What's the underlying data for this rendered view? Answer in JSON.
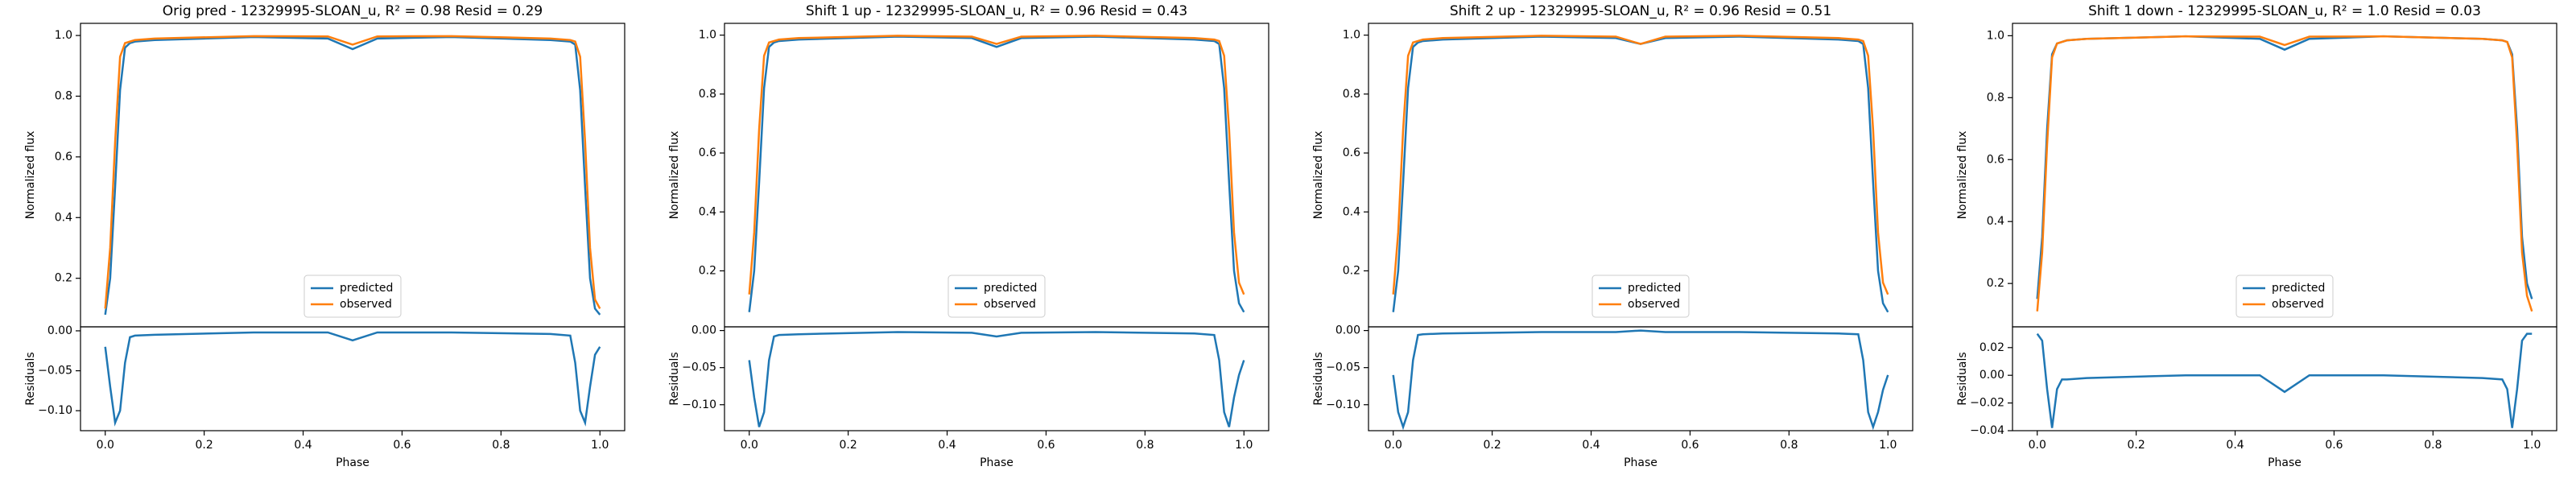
{
  "chart_data": [
    {
      "type": "line",
      "title": "Orig pred - 12329995-SLOAN_u, R² = 0.98 Resid = 0.29",
      "ylabel": "Normalized flux",
      "x": [
        0,
        0.01,
        0.02,
        0.03,
        0.04,
        0.05,
        0.06,
        0.1,
        0.3,
        0.45,
        0.5,
        0.55,
        0.7,
        0.9,
        0.94,
        0.95,
        0.96,
        0.97,
        0.98,
        0.99,
        1
      ],
      "series": [
        {
          "name": "predicted",
          "color": "#1f77b4",
          "values": [
            0.08,
            0.2,
            0.5,
            0.82,
            0.96,
            0.975,
            0.98,
            0.985,
            0.995,
            0.99,
            0.955,
            0.99,
            0.995,
            0.985,
            0.98,
            0.97,
            0.82,
            0.5,
            0.2,
            0.1,
            0.08
          ]
        },
        {
          "name": "observed",
          "color": "#ff7f0e",
          "values": [
            0.1,
            0.3,
            0.65,
            0.93,
            0.975,
            0.98,
            0.985,
            0.99,
            0.998,
            0.997,
            0.97,
            0.997,
            0.998,
            0.99,
            0.985,
            0.98,
            0.93,
            0.65,
            0.3,
            0.13,
            0.1
          ]
        }
      ],
      "xlim": [
        -0.05,
        1.05
      ],
      "ylim": [
        0.04,
        1.04
      ],
      "yticks": [
        0.2,
        0.4,
        0.6,
        0.8,
        {
          "value": 1,
          "label": "1.0"
        }
      ],
      "legend": "lower center"
    },
    {
      "type": "line",
      "xlabel": "Phase",
      "ylabel": "Residuals",
      "x": [
        0,
        0.01,
        0.02,
        0.03,
        0.04,
        0.05,
        0.06,
        0.1,
        0.3,
        0.45,
        0.5,
        0.55,
        0.7,
        0.9,
        0.94,
        0.95,
        0.96,
        0.97,
        0.98,
        0.99,
        1
      ],
      "series": [
        {
          "color": "#1f77b4",
          "values": [
            -0.02,
            -0.07,
            -0.115,
            -0.1,
            -0.04,
            -0.008,
            -0.006,
            -0.005,
            -0.002,
            -0.002,
            -0.012,
            -0.002,
            -0.002,
            -0.004,
            -0.006,
            -0.04,
            -0.1,
            -0.115,
            -0.07,
            -0.03,
            -0.02
          ]
        }
      ],
      "xlim": [
        -0.05,
        1.05
      ],
      "xticks": [
        {
          "value": 0,
          "label": "0.0"
        },
        0.2,
        0.4,
        0.6,
        0.8,
        {
          "value": 1,
          "label": "1.0"
        }
      ],
      "ylim": [
        -0.125,
        0.005
      ],
      "yticks": [
        {
          "value": 0,
          "label": "0.00"
        },
        {
          "value": -0.05,
          "label": "−0.05"
        },
        {
          "value": -0.1,
          "label": "−0.10"
        }
      ]
    },
    {
      "type": "line",
      "title": "Shift 1 up - 12329995-SLOAN_u, R² = 0.96 Resid = 0.43",
      "ylabel": "Normalized flux",
      "x": [
        0,
        0.01,
        0.02,
        0.03,
        0.04,
        0.05,
        0.06,
        0.1,
        0.3,
        0.45,
        0.5,
        0.55,
        0.7,
        0.9,
        0.94,
        0.95,
        0.96,
        0.97,
        0.98,
        0.99,
        1
      ],
      "series": [
        {
          "name": "predicted",
          "color": "#1f77b4",
          "values": [
            0.06,
            0.2,
            0.5,
            0.82,
            0.96,
            0.975,
            0.98,
            0.985,
            0.995,
            0.99,
            0.96,
            0.99,
            0.995,
            0.985,
            0.98,
            0.97,
            0.82,
            0.5,
            0.2,
            0.09,
            0.06
          ]
        },
        {
          "name": "observed",
          "color": "#ff7f0e",
          "values": [
            0.12,
            0.33,
            0.68,
            0.93,
            0.975,
            0.98,
            0.985,
            0.99,
            0.998,
            0.995,
            0.97,
            0.995,
            0.998,
            0.99,
            0.985,
            0.98,
            0.93,
            0.68,
            0.33,
            0.16,
            0.12
          ]
        }
      ],
      "xlim": [
        -0.05,
        1.05
      ],
      "ylim": [
        0.01,
        1.04
      ],
      "yticks": [
        0.2,
        0.4,
        0.6,
        0.8,
        {
          "value": 1,
          "label": "1.0"
        }
      ],
      "legend": "lower center"
    },
    {
      "type": "line",
      "xlabel": "Phase",
      "ylabel": "Residuals",
      "x": [
        0,
        0.01,
        0.02,
        0.03,
        0.04,
        0.05,
        0.06,
        0.1,
        0.3,
        0.45,
        0.5,
        0.55,
        0.7,
        0.9,
        0.94,
        0.95,
        0.96,
        0.97,
        0.98,
        0.99,
        1
      ],
      "series": [
        {
          "color": "#1f77b4",
          "values": [
            -0.04,
            -0.09,
            -0.13,
            -0.11,
            -0.04,
            -0.008,
            -0.006,
            -0.005,
            -0.002,
            -0.003,
            -0.008,
            -0.003,
            -0.002,
            -0.004,
            -0.006,
            -0.04,
            -0.11,
            -0.13,
            -0.09,
            -0.06,
            -0.04
          ]
        }
      ],
      "xlim": [
        -0.05,
        1.05
      ],
      "xticks": [
        {
          "value": 0,
          "label": "0.0"
        },
        0.2,
        0.4,
        0.6,
        0.8,
        {
          "value": 1,
          "label": "1.0"
        }
      ],
      "ylim": [
        -0.135,
        0.005
      ],
      "yticks": [
        {
          "value": 0,
          "label": "0.00"
        },
        {
          "value": -0.05,
          "label": "−0.05"
        },
        {
          "value": -0.1,
          "label": "−0.10"
        }
      ]
    },
    {
      "type": "line",
      "title": "Shift 2 up - 12329995-SLOAN_u, R² = 0.96 Resid = 0.51",
      "ylabel": "Normalized flux",
      "x": [
        0,
        0.01,
        0.02,
        0.03,
        0.04,
        0.05,
        0.06,
        0.1,
        0.3,
        0.45,
        0.5,
        0.55,
        0.7,
        0.9,
        0.94,
        0.95,
        0.96,
        0.97,
        0.98,
        0.99,
        1
      ],
      "series": [
        {
          "name": "predicted",
          "color": "#1f77b4",
          "values": [
            0.06,
            0.2,
            0.5,
            0.82,
            0.96,
            0.975,
            0.98,
            0.985,
            0.995,
            0.99,
            0.97,
            0.99,
            0.995,
            0.985,
            0.98,
            0.97,
            0.82,
            0.5,
            0.2,
            0.09,
            0.06
          ]
        },
        {
          "name": "observed",
          "color": "#ff7f0e",
          "values": [
            0.12,
            0.33,
            0.68,
            0.93,
            0.975,
            0.98,
            0.985,
            0.99,
            0.998,
            0.995,
            0.97,
            0.995,
            0.998,
            0.99,
            0.985,
            0.98,
            0.93,
            0.68,
            0.33,
            0.16,
            0.12
          ]
        }
      ],
      "xlim": [
        -0.05,
        1.05
      ],
      "ylim": [
        0.01,
        1.04
      ],
      "yticks": [
        0.2,
        0.4,
        0.6,
        0.8,
        {
          "value": 1,
          "label": "1.0"
        }
      ],
      "legend": "lower center"
    },
    {
      "type": "line",
      "xlabel": "Phase",
      "ylabel": "Residuals",
      "x": [
        0,
        0.01,
        0.02,
        0.03,
        0.04,
        0.05,
        0.06,
        0.1,
        0.3,
        0.45,
        0.5,
        0.55,
        0.7,
        0.9,
        0.94,
        0.95,
        0.96,
        0.97,
        0.98,
        0.99,
        1
      ],
      "series": [
        {
          "color": "#1f77b4",
          "values": [
            -0.06,
            -0.11,
            -0.13,
            -0.11,
            -0.04,
            -0.006,
            -0.005,
            -0.004,
            -0.002,
            -0.002,
            0,
            -0.002,
            -0.002,
            -0.004,
            -0.005,
            -0.04,
            -0.11,
            -0.13,
            -0.11,
            -0.08,
            -0.06
          ]
        }
      ],
      "xlim": [
        -0.05,
        1.05
      ],
      "xticks": [
        {
          "value": 0,
          "label": "0.0"
        },
        0.2,
        0.4,
        0.6,
        0.8,
        {
          "value": 1,
          "label": "1.0"
        }
      ],
      "ylim": [
        -0.135,
        0.005
      ],
      "yticks": [
        {
          "value": 0,
          "label": "0.00"
        },
        {
          "value": -0.05,
          "label": "−0.05"
        },
        {
          "value": -0.1,
          "label": "−0.10"
        }
      ]
    },
    {
      "type": "line",
      "title": "Shift 1 down - 12329995-SLOAN_u, R² = 1.0 Resid = 0.03",
      "ylabel": "Normalized flux",
      "x": [
        0,
        0.01,
        0.02,
        0.03,
        0.04,
        0.05,
        0.06,
        0.1,
        0.3,
        0.45,
        0.5,
        0.55,
        0.7,
        0.9,
        0.94,
        0.95,
        0.96,
        0.97,
        0.98,
        0.99,
        1
      ],
      "series": [
        {
          "name": "predicted",
          "color": "#1f77b4",
          "values": [
            0.15,
            0.35,
            0.7,
            0.94,
            0.975,
            0.98,
            0.985,
            0.99,
            0.998,
            0.99,
            0.955,
            0.99,
            0.998,
            0.99,
            0.985,
            0.98,
            0.94,
            0.7,
            0.35,
            0.2,
            0.15
          ]
        },
        {
          "name": "observed",
          "color": "#ff7f0e",
          "values": [
            0.11,
            0.3,
            0.65,
            0.93,
            0.975,
            0.98,
            0.985,
            0.99,
            0.998,
            0.997,
            0.97,
            0.997,
            0.998,
            0.99,
            0.985,
            0.98,
            0.93,
            0.65,
            0.3,
            0.16,
            0.11
          ]
        }
      ],
      "xlim": [
        -0.05,
        1.05
      ],
      "ylim": [
        0.06,
        1.04
      ],
      "yticks": [
        0.2,
        0.4,
        0.6,
        0.8,
        {
          "value": 1,
          "label": "1.0"
        }
      ],
      "legend": "lower center"
    },
    {
      "type": "line",
      "xlabel": "Phase",
      "ylabel": "Residuals",
      "x": [
        0,
        0.01,
        0.02,
        0.03,
        0.04,
        0.05,
        0.06,
        0.1,
        0.3,
        0.45,
        0.5,
        0.55,
        0.7,
        0.9,
        0.94,
        0.95,
        0.96,
        0.97,
        0.98,
        0.99,
        1
      ],
      "series": [
        {
          "color": "#1f77b4",
          "values": [
            0.03,
            0.025,
            -0.01,
            -0.038,
            -0.01,
            -0.003,
            -0.003,
            -0.002,
            0,
            0,
            -0.012,
            0,
            0,
            -0.002,
            -0.003,
            -0.01,
            -0.038,
            -0.01,
            0.025,
            0.03,
            0.03
          ]
        }
      ],
      "xlim": [
        -0.05,
        1.05
      ],
      "xticks": [
        {
          "value": 0,
          "label": "0.0"
        },
        0.2,
        0.4,
        0.6,
        0.8,
        {
          "value": 1,
          "label": "1.0"
        }
      ],
      "ylim": [
        -0.04,
        0.035
      ],
      "yticks": [
        {
          "value": 0.02,
          "label": "0.02"
        },
        {
          "value": 0,
          "label": "0.00"
        },
        {
          "value": -0.02,
          "label": "−0.02"
        },
        {
          "value": -0.04,
          "label": "−0.04"
        }
      ]
    }
  ]
}
